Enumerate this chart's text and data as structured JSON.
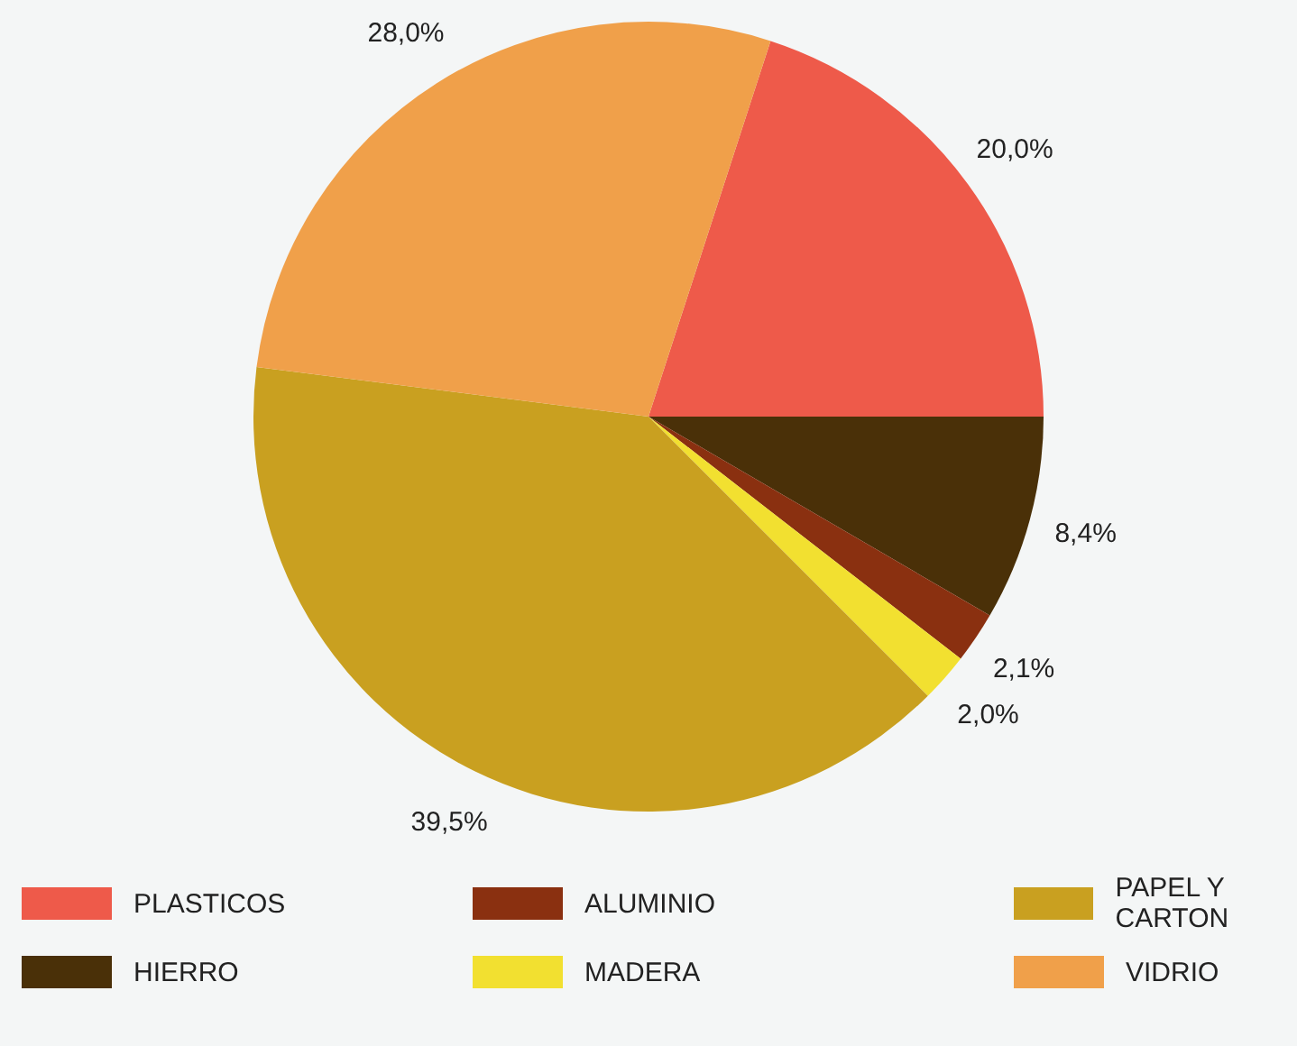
{
  "chart_data": {
    "type": "pie",
    "categories": [
      "PLASTICOS",
      "HIERRO",
      "ALUMINIO",
      "MADERA",
      "PAPEL Y CARTON",
      "VIDRIO"
    ],
    "values": [
      20.0,
      8.4,
      2.1,
      2.0,
      39.5,
      28.0
    ],
    "colors": [
      "#ee5a4a",
      "#4a3008",
      "#8a3010",
      "#f2e030",
      "#c9a020",
      "#f0a04a"
    ],
    "value_labels": [
      "20,0%",
      "8,4%",
      "2,1%",
      "2,0%",
      "39,5%",
      "28,0%"
    ],
    "legend": "bottom"
  }
}
